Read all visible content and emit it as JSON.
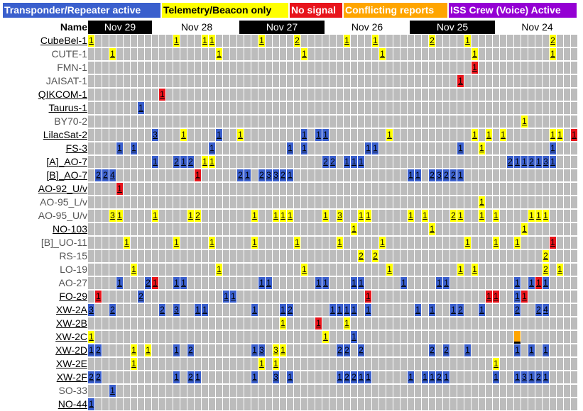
{
  "legend": [
    {
      "label": "Transponder/Repeater active",
      "color": "#3a5fcd",
      "text_color": "#ffffff"
    },
    {
      "label": "Telemetry/Beacon only",
      "color": "#ffff00",
      "text_color": "#000000"
    },
    {
      "label": "No signal",
      "color": "#e8141b",
      "text_color": "#ffffff"
    },
    {
      "label": "Conflicting reports",
      "color": "#ffa500",
      "text_color": "#ffffff"
    },
    {
      "label": "ISS Crew (Voice) Active",
      "color": "#9400d3",
      "text_color": "#ffffff"
    }
  ],
  "header": {
    "name_label": "Name"
  },
  "days": [
    {
      "label": "Nov 29",
      "style": "dark"
    },
    {
      "label": "Nov 28",
      "style": "light"
    },
    {
      "label": "Nov 27",
      "style": "dark"
    },
    {
      "label": "Nov 26",
      "style": "light"
    },
    {
      "label": "Nov 25",
      "style": "dark"
    },
    {
      "label": "Nov 24",
      "style": "light"
    }
  ],
  "rows": [
    {
      "name": "CubeBel-1",
      "link": true,
      "cells": [
        [
          0,
          "t",
          "1"
        ],
        [
          12,
          "t",
          "1"
        ],
        [
          16,
          "t",
          "1"
        ],
        [
          17,
          "t",
          "1"
        ],
        [
          24,
          "t",
          "1"
        ],
        [
          29,
          "t",
          "2"
        ],
        [
          36,
          "t",
          "1"
        ],
        [
          40,
          "t",
          "1"
        ],
        [
          48,
          "t",
          "2"
        ],
        [
          53,
          "t",
          "1"
        ],
        [
          65,
          "t",
          "2"
        ]
      ]
    },
    {
      "name": "CUTE-1",
      "link": false,
      "cells": [
        [
          3,
          "t",
          "1"
        ],
        [
          18,
          "t",
          "1"
        ],
        [
          30,
          "t",
          "1"
        ],
        [
          41,
          "t",
          "1"
        ],
        [
          54,
          "t",
          "1"
        ],
        [
          65,
          "t",
          "1"
        ]
      ]
    },
    {
      "name": "FMN-1",
      "link": false,
      "cells": [
        [
          54,
          "n",
          "1"
        ]
      ]
    },
    {
      "name": "JAISAT-1",
      "link": false,
      "cells": [
        [
          52,
          "n",
          "1"
        ]
      ]
    },
    {
      "name": "QIKCOM-1",
      "link": true,
      "cells": [
        [
          10,
          "n",
          "1"
        ]
      ]
    },
    {
      "name": "Taurus-1",
      "link": true,
      "cells": [
        [
          7,
          "r",
          "1"
        ]
      ]
    },
    {
      "name": "BY70-2",
      "link": false,
      "cells": [
        [
          61,
          "t",
          "1"
        ]
      ]
    },
    {
      "name": "LilacSat-2",
      "link": true,
      "cells": [
        [
          9,
          "r",
          "3"
        ],
        [
          13,
          "t",
          "1"
        ],
        [
          18,
          "r",
          "1"
        ],
        [
          21,
          "t",
          "1"
        ],
        [
          30,
          "r",
          "1"
        ],
        [
          32,
          "r",
          "1"
        ],
        [
          33,
          "r",
          "1"
        ],
        [
          42,
          "t",
          "1"
        ],
        [
          54,
          "t",
          "1"
        ],
        [
          56,
          "t",
          "1"
        ],
        [
          58,
          "t",
          "1"
        ],
        [
          65,
          "t",
          "1"
        ],
        [
          66,
          "t",
          "1"
        ],
        [
          68,
          "n",
          "1"
        ]
      ]
    },
    {
      "name": "FS-3",
      "link": true,
      "cells": [
        [
          4,
          "r",
          "1"
        ],
        [
          6,
          "r",
          "1"
        ],
        [
          17,
          "r",
          "1"
        ],
        [
          28,
          "r",
          "1"
        ],
        [
          30,
          "r",
          "1"
        ],
        [
          39,
          "r",
          "1"
        ],
        [
          40,
          "r",
          "1"
        ],
        [
          52,
          "r",
          "1"
        ],
        [
          55,
          "t",
          "1"
        ],
        [
          65,
          "r",
          "1"
        ]
      ]
    },
    {
      "name": "[A]_AO-7",
      "link": true,
      "cells": [
        [
          9,
          "r",
          "1"
        ],
        [
          12,
          "r",
          "2"
        ],
        [
          13,
          "r",
          "1"
        ],
        [
          14,
          "r",
          "2"
        ],
        [
          16,
          "t",
          "1"
        ],
        [
          17,
          "t",
          "1"
        ],
        [
          33,
          "r",
          "2"
        ],
        [
          34,
          "r",
          "2"
        ],
        [
          36,
          "r",
          "1"
        ],
        [
          37,
          "r",
          "1"
        ],
        [
          38,
          "r",
          "1"
        ],
        [
          59,
          "r",
          "2"
        ],
        [
          60,
          "r",
          "1"
        ],
        [
          61,
          "r",
          "1"
        ],
        [
          62,
          "r",
          "2"
        ],
        [
          63,
          "r",
          "1"
        ],
        [
          64,
          "r",
          "3"
        ],
        [
          65,
          "r",
          "1"
        ]
      ]
    },
    {
      "name": "[B]_AO-7",
      "link": true,
      "cells": [
        [
          1,
          "r",
          "2"
        ],
        [
          2,
          "r",
          "2"
        ],
        [
          3,
          "r",
          "4"
        ],
        [
          15,
          "n",
          "1"
        ],
        [
          21,
          "r",
          "2"
        ],
        [
          22,
          "r",
          "1"
        ],
        [
          24,
          "r",
          "2"
        ],
        [
          25,
          "r",
          "3"
        ],
        [
          26,
          "r",
          "3"
        ],
        [
          27,
          "r",
          "2"
        ],
        [
          28,
          "r",
          "1"
        ],
        [
          45,
          "r",
          "1"
        ],
        [
          46,
          "r",
          "1"
        ],
        [
          48,
          "r",
          "2"
        ],
        [
          49,
          "r",
          "3"
        ],
        [
          50,
          "r",
          "2"
        ],
        [
          51,
          "r",
          "2"
        ],
        [
          52,
          "r",
          "1"
        ]
      ]
    },
    {
      "name": "AO-92_U/v",
      "link": true,
      "cells": [
        [
          4,
          "n",
          "1"
        ]
      ]
    },
    {
      "name": "AO-95_L/v",
      "link": false,
      "cells": [
        [
          55,
          "t",
          "1"
        ]
      ]
    },
    {
      "name": "AO-95_U/v",
      "link": false,
      "cells": [
        [
          3,
          "t",
          "3"
        ],
        [
          4,
          "t",
          "1"
        ],
        [
          9,
          "t",
          "1"
        ],
        [
          14,
          "t",
          "1"
        ],
        [
          15,
          "t",
          "2"
        ],
        [
          23,
          "t",
          "1"
        ],
        [
          26,
          "t",
          "1"
        ],
        [
          27,
          "t",
          "1"
        ],
        [
          28,
          "t",
          "1"
        ],
        [
          33,
          "t",
          "1"
        ],
        [
          35,
          "t",
          "3"
        ],
        [
          38,
          "t",
          "1"
        ],
        [
          39,
          "t",
          "1"
        ],
        [
          45,
          "t",
          "1"
        ],
        [
          47,
          "t",
          "1"
        ],
        [
          51,
          "t",
          "2"
        ],
        [
          52,
          "t",
          "1"
        ],
        [
          55,
          "t",
          "1"
        ],
        [
          57,
          "t",
          "1"
        ],
        [
          62,
          "t",
          "1"
        ],
        [
          63,
          "t",
          "1"
        ],
        [
          64,
          "t",
          "1"
        ]
      ]
    },
    {
      "name": "NO-103",
      "link": true,
      "cells": [
        [
          37,
          "t",
          "1"
        ],
        [
          48,
          "t",
          "1"
        ],
        [
          61,
          "t",
          "1"
        ]
      ]
    },
    {
      "name": "[B]_UO-11",
      "link": false,
      "cells": [
        [
          5,
          "t",
          "1"
        ],
        [
          12,
          "t",
          "1"
        ],
        [
          17,
          "t",
          "1"
        ],
        [
          23,
          "t",
          "1"
        ],
        [
          29,
          "t",
          "1"
        ],
        [
          35,
          "t",
          "1"
        ],
        [
          41,
          "t",
          "1"
        ],
        [
          53,
          "t",
          "1"
        ],
        [
          57,
          "t",
          "1"
        ],
        [
          60,
          "t",
          "1"
        ],
        [
          65,
          "n",
          "1"
        ]
      ]
    },
    {
      "name": "RS-15",
      "link": false,
      "cells": [
        [
          38,
          "t",
          "2"
        ],
        [
          40,
          "t",
          "2"
        ],
        [
          64,
          "t",
          "2"
        ]
      ]
    },
    {
      "name": "LO-19",
      "link": false,
      "cells": [
        [
          6,
          "t",
          "1"
        ],
        [
          18,
          "t",
          "1"
        ],
        [
          30,
          "t",
          "1"
        ],
        [
          42,
          "t",
          "1"
        ],
        [
          52,
          "t",
          "1"
        ],
        [
          54,
          "t",
          "1"
        ],
        [
          64,
          "t",
          "2"
        ],
        [
          66,
          "t",
          "1"
        ]
      ]
    },
    {
      "name": "AO-27",
      "link": false,
      "cells": [
        [
          4,
          "r",
          "1"
        ],
        [
          8,
          "r",
          "2"
        ],
        [
          9,
          "n",
          "1"
        ],
        [
          12,
          "r",
          "1"
        ],
        [
          13,
          "r",
          "1"
        ],
        [
          24,
          "r",
          "1"
        ],
        [
          25,
          "r",
          "1"
        ],
        [
          32,
          "r",
          "1"
        ],
        [
          33,
          "r",
          "1"
        ],
        [
          37,
          "r",
          "1"
        ],
        [
          38,
          "r",
          "1"
        ],
        [
          44,
          "r",
          "1"
        ],
        [
          49,
          "r",
          "1"
        ],
        [
          50,
          "r",
          "1"
        ],
        [
          60,
          "r",
          "1"
        ],
        [
          62,
          "r",
          "1"
        ],
        [
          63,
          "n",
          "1"
        ],
        [
          64,
          "r",
          "1"
        ]
      ]
    },
    {
      "name": "FO-29",
      "link": true,
      "cells": [
        [
          1,
          "n",
          "1"
        ],
        [
          7,
          "r",
          "2"
        ],
        [
          19,
          "r",
          "1"
        ],
        [
          20,
          "r",
          "1"
        ],
        [
          39,
          "n",
          "1"
        ],
        [
          56,
          "n",
          "1"
        ],
        [
          57,
          "n",
          "1"
        ],
        [
          60,
          "r",
          "1"
        ],
        [
          61,
          "n",
          "1"
        ]
      ]
    },
    {
      "name": "XW-2A",
      "link": true,
      "cells": [
        [
          0,
          "r",
          "3"
        ],
        [
          3,
          "r",
          "2"
        ],
        [
          10,
          "r",
          "2"
        ],
        [
          12,
          "r",
          "3"
        ],
        [
          15,
          "r",
          "1"
        ],
        [
          16,
          "r",
          "1"
        ],
        [
          23,
          "r",
          "1"
        ],
        [
          27,
          "r",
          "1"
        ],
        [
          28,
          "r",
          "2"
        ],
        [
          34,
          "r",
          "1"
        ],
        [
          35,
          "r",
          "1"
        ],
        [
          36,
          "r",
          "1"
        ],
        [
          37,
          "r",
          "1"
        ],
        [
          39,
          "r",
          "1"
        ],
        [
          46,
          "r",
          "1"
        ],
        [
          48,
          "r",
          "1"
        ],
        [
          51,
          "r",
          "1"
        ],
        [
          52,
          "r",
          "2"
        ],
        [
          55,
          "r",
          "1"
        ],
        [
          60,
          "r",
          "2"
        ],
        [
          63,
          "r",
          "2"
        ],
        [
          64,
          "r",
          "4"
        ]
      ]
    },
    {
      "name": "XW-2B",
      "link": true,
      "cells": [
        [
          27,
          "t",
          "1"
        ],
        [
          32,
          "n",
          "1"
        ],
        [
          36,
          "t",
          "1"
        ]
      ]
    },
    {
      "name": "XW-2C",
      "link": true,
      "cells": [
        [
          0,
          "t",
          "1"
        ],
        [
          33,
          "t",
          "1"
        ],
        [
          37,
          "r",
          "1"
        ],
        [
          60,
          "c",
          ""
        ]
      ]
    },
    {
      "name": "XW-2D",
      "link": true,
      "cells": [
        [
          0,
          "r",
          "1"
        ],
        [
          1,
          "r",
          "2"
        ],
        [
          6,
          "t",
          "1"
        ],
        [
          8,
          "t",
          "1"
        ],
        [
          12,
          "r",
          "1"
        ],
        [
          14,
          "r",
          "2"
        ],
        [
          23,
          "r",
          "1"
        ],
        [
          24,
          "r",
          "3"
        ],
        [
          26,
          "t",
          "3"
        ],
        [
          27,
          "t",
          "1"
        ],
        [
          35,
          "r",
          "2"
        ],
        [
          36,
          "r",
          "2"
        ],
        [
          38,
          "r",
          "2"
        ],
        [
          48,
          "r",
          "2"
        ],
        [
          50,
          "r",
          "2"
        ],
        [
          53,
          "r",
          "1"
        ],
        [
          60,
          "r",
          "1"
        ],
        [
          62,
          "r",
          "1"
        ],
        [
          64,
          "r",
          "1"
        ]
      ]
    },
    {
      "name": "XW-2E",
      "link": true,
      "cells": [
        [
          6,
          "t",
          "1"
        ],
        [
          24,
          "t",
          "1"
        ],
        [
          26,
          "t",
          "1"
        ],
        [
          57,
          "t",
          "1"
        ]
      ]
    },
    {
      "name": "XW-2F",
      "link": true,
      "cells": [
        [
          0,
          "r",
          "2"
        ],
        [
          1,
          "r",
          "2"
        ],
        [
          12,
          "r",
          "1"
        ],
        [
          14,
          "r",
          "2"
        ],
        [
          15,
          "r",
          "1"
        ],
        [
          23,
          "r",
          "1"
        ],
        [
          26,
          "r",
          "3"
        ],
        [
          28,
          "r",
          "1"
        ],
        [
          35,
          "r",
          "1"
        ],
        [
          36,
          "r",
          "2"
        ],
        [
          37,
          "r",
          "2"
        ],
        [
          38,
          "r",
          "1"
        ],
        [
          39,
          "r",
          "1"
        ],
        [
          45,
          "r",
          "1"
        ],
        [
          47,
          "r",
          "1"
        ],
        [
          48,
          "r",
          "1"
        ],
        [
          49,
          "r",
          "2"
        ],
        [
          50,
          "r",
          "1"
        ],
        [
          57,
          "r",
          "1"
        ],
        [
          60,
          "r",
          "1"
        ],
        [
          61,
          "r",
          "3"
        ],
        [
          62,
          "r",
          "1"
        ],
        [
          63,
          "r",
          "2"
        ],
        [
          64,
          "r",
          "1"
        ]
      ]
    },
    {
      "name": "SO-33",
      "link": false,
      "cells": [
        [
          3,
          "r",
          "1"
        ]
      ]
    },
    {
      "name": "NO-44",
      "link": true,
      "cells": [
        [
          0,
          "r",
          "1"
        ]
      ]
    }
  ]
}
